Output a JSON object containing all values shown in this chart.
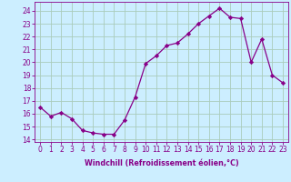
{
  "x": [
    0,
    1,
    2,
    3,
    4,
    5,
    6,
    7,
    8,
    9,
    10,
    11,
    12,
    13,
    14,
    15,
    16,
    17,
    18,
    19,
    20,
    21,
    22,
    23
  ],
  "y": [
    16.5,
    15.8,
    16.1,
    15.6,
    14.7,
    14.5,
    14.4,
    14.4,
    15.5,
    17.3,
    19.9,
    20.5,
    21.3,
    21.5,
    22.2,
    23.0,
    23.6,
    24.2,
    23.5,
    23.4,
    20.0,
    21.8,
    19.0,
    18.4
  ],
  "line_color": "#880088",
  "marker": "D",
  "marker_size": 2.2,
  "bg_color": "#cceeff",
  "grid_color": "#aaccbb",
  "xlabel": "Windchill (Refroidissement éolien,°C)",
  "ylabel_ticks": [
    14,
    15,
    16,
    17,
    18,
    19,
    20,
    21,
    22,
    23,
    24
  ],
  "ylim": [
    13.8,
    24.7
  ],
  "xlim": [
    -0.5,
    23.5
  ],
  "tick_color": "#880088",
  "label_color": "#880088",
  "tick_fontsize": 5.5,
  "xlabel_fontsize": 5.8,
  "linewidth": 0.9
}
